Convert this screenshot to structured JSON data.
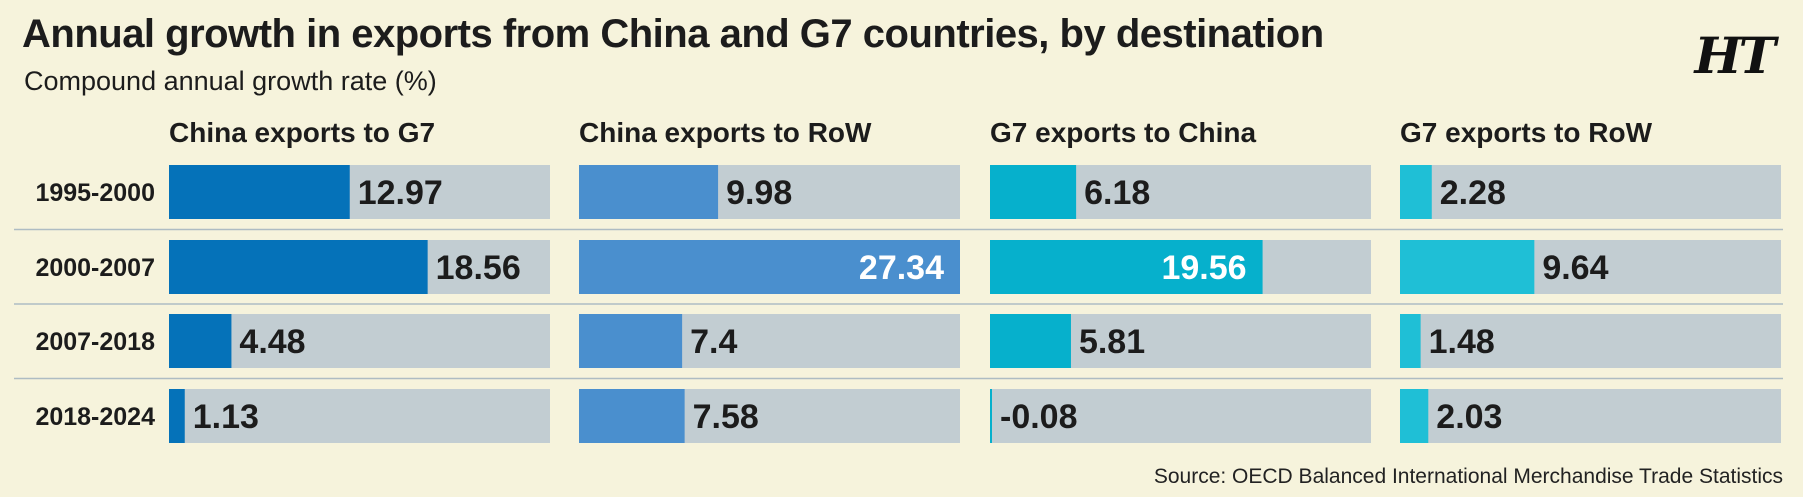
{
  "header": {
    "title": "Annual growth in exports from China and G7 countries, by destination",
    "subtitle": "Compound annual growth rate (%)",
    "logo": "HT"
  },
  "footer": {
    "source": "Source: OECD Balanced International Merchandise Trade Statistics"
  },
  "colors": {
    "background": "#f6f3dc",
    "track": "#c2cdd2",
    "divider": "#aebcc3",
    "text": "#1c1c1c",
    "inside_label": "#ffffff"
  },
  "chart_data": {
    "type": "bar",
    "orientation": "horizontal",
    "categories": [
      "1995-2000",
      "2000-2007",
      "2007-2018",
      "2018-2024"
    ],
    "xlim": [
      0,
      27.34
    ],
    "grid": false,
    "legend": "none",
    "series": [
      {
        "name": "China exports to G7",
        "color": "#0572b9",
        "values": [
          12.97,
          18.56,
          4.48,
          1.13
        ]
      },
      {
        "name": "China exports to RoW",
        "color": "#4a8fce",
        "values": [
          9.98,
          27.34,
          7.4,
          7.58
        ]
      },
      {
        "name": "G7 exports to China",
        "color": "#06b0cc",
        "values": [
          6.18,
          19.56,
          5.81,
          -0.08
        ]
      },
      {
        "name": "G7 exports to RoW",
        "color": "#1fbfd6",
        "values": [
          2.28,
          9.64,
          1.48,
          2.03
        ]
      }
    ]
  }
}
